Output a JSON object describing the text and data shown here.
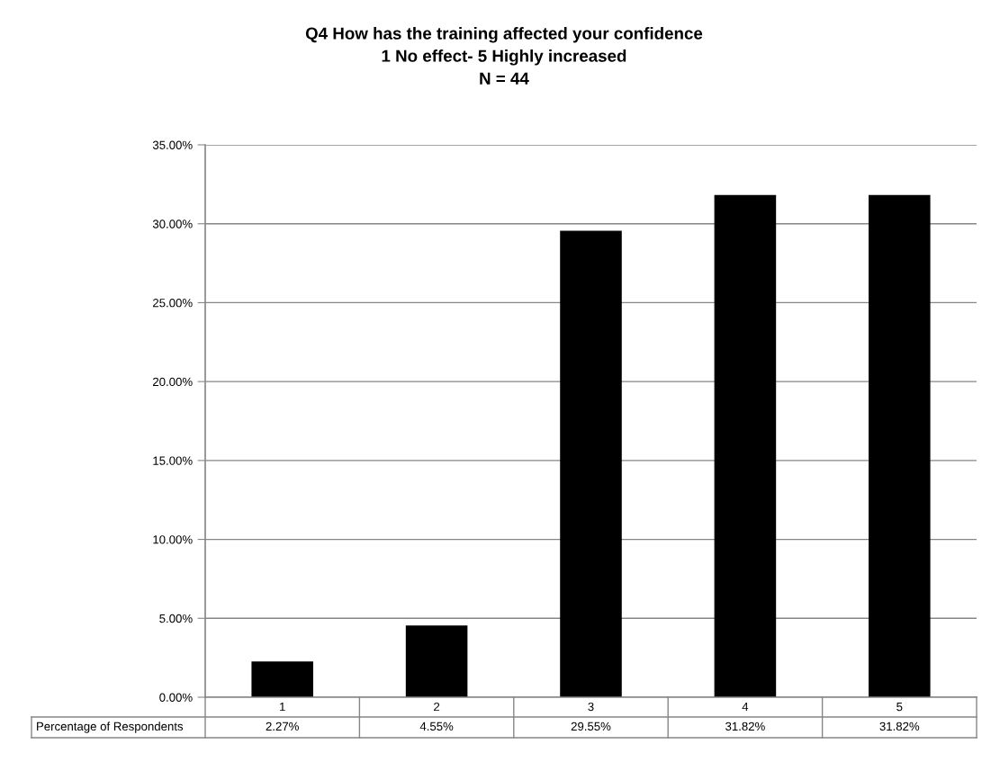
{
  "chart_data": {
    "type": "bar",
    "title": "Q4 How has the training affected your confidence\n1 No effect- 5 Highly increased\nN = 44",
    "categories": [
      "1",
      "2",
      "3",
      "4",
      "5"
    ],
    "series": [
      {
        "name": "Percentage of Respondents",
        "color": "#000000",
        "values": [
          2.27,
          4.55,
          29.55,
          31.82,
          31.82
        ],
        "value_labels": [
          "2.27%",
          "4.55%",
          "29.55%",
          "31.82%",
          "31.82%"
        ]
      }
    ],
    "ylim": [
      0,
      35
    ],
    "yticks": [
      {
        "value": 0,
        "label": "0.00%"
      },
      {
        "value": 5,
        "label": "5.00%"
      },
      {
        "value": 10,
        "label": "10.00%"
      },
      {
        "value": 15,
        "label": "15.00%"
      },
      {
        "value": 20,
        "label": "20.00%"
      },
      {
        "value": 25,
        "label": "25.00%"
      },
      {
        "value": 30,
        "label": "30.00%"
      },
      {
        "value": 35,
        "label": "35.00%"
      }
    ],
    "grid": "y"
  }
}
